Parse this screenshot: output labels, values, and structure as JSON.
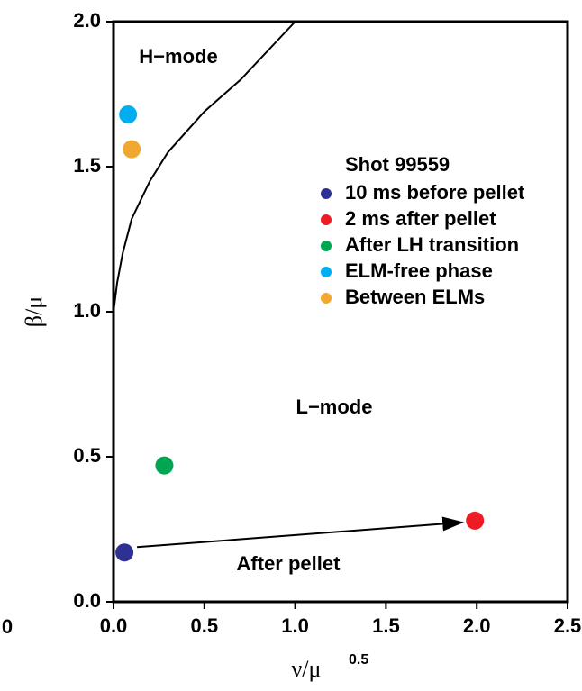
{
  "chart_data": {
    "type": "scatter",
    "xlabel": "ν/μ",
    "xlabel_sup": "0.5",
    "ylabel": "β/μ",
    "xlim": [
      0,
      2.5
    ],
    "ylim": [
      0,
      2.0
    ],
    "xticks": [
      {
        "value": 0,
        "label": "0.0"
      },
      {
        "value": 0.5,
        "label": "0.5"
      },
      {
        "value": 1.0,
        "label": "1.0"
      },
      {
        "value": 1.5,
        "label": "1.5"
      },
      {
        "value": 2.0,
        "label": "2.0"
      },
      {
        "value": 2.5,
        "label": "2.5"
      }
    ],
    "yticks": [
      {
        "value": 0,
        "label": "0.0"
      },
      {
        "value": 0.5,
        "label": "0.5"
      },
      {
        "value": 1.0,
        "label": "1.0"
      },
      {
        "value": 1.5,
        "label": "1.5"
      },
      {
        "value": 2.0,
        "label": "2.0"
      }
    ],
    "legend_title": "Shot 99559",
    "series": [
      {
        "name": "10 ms before pellet",
        "color": "#2e3192",
        "x": [
          0.06
        ],
        "values": [
          0.17
        ]
      },
      {
        "name": "2 ms after pellet",
        "color": "#ed1c24",
        "x": [
          1.99
        ],
        "values": [
          0.28
        ]
      },
      {
        "name": "After LH transition",
        "color": "#00a651",
        "x": [
          0.28
        ],
        "values": [
          0.47
        ]
      },
      {
        "name": "ELM-free phase",
        "color": "#00aeef",
        "x": [
          0.08
        ],
        "values": [
          1.68
        ]
      },
      {
        "name": "Between ELMs",
        "color": "#f0a830",
        "x": [
          0.1
        ],
        "values": [
          1.56
        ]
      }
    ],
    "boundary": {
      "color": "#000000",
      "x": [
        0,
        0.02,
        0.05,
        0.1,
        0.2,
        0.3,
        0.5,
        0.7,
        1.0
      ],
      "values": [
        1.0,
        1.1,
        1.2,
        1.32,
        1.45,
        1.55,
        1.69,
        1.8,
        2.0
      ]
    },
    "annotations": [
      "H−mode",
      "L−mode",
      "After pellet",
      "0"
    ]
  }
}
